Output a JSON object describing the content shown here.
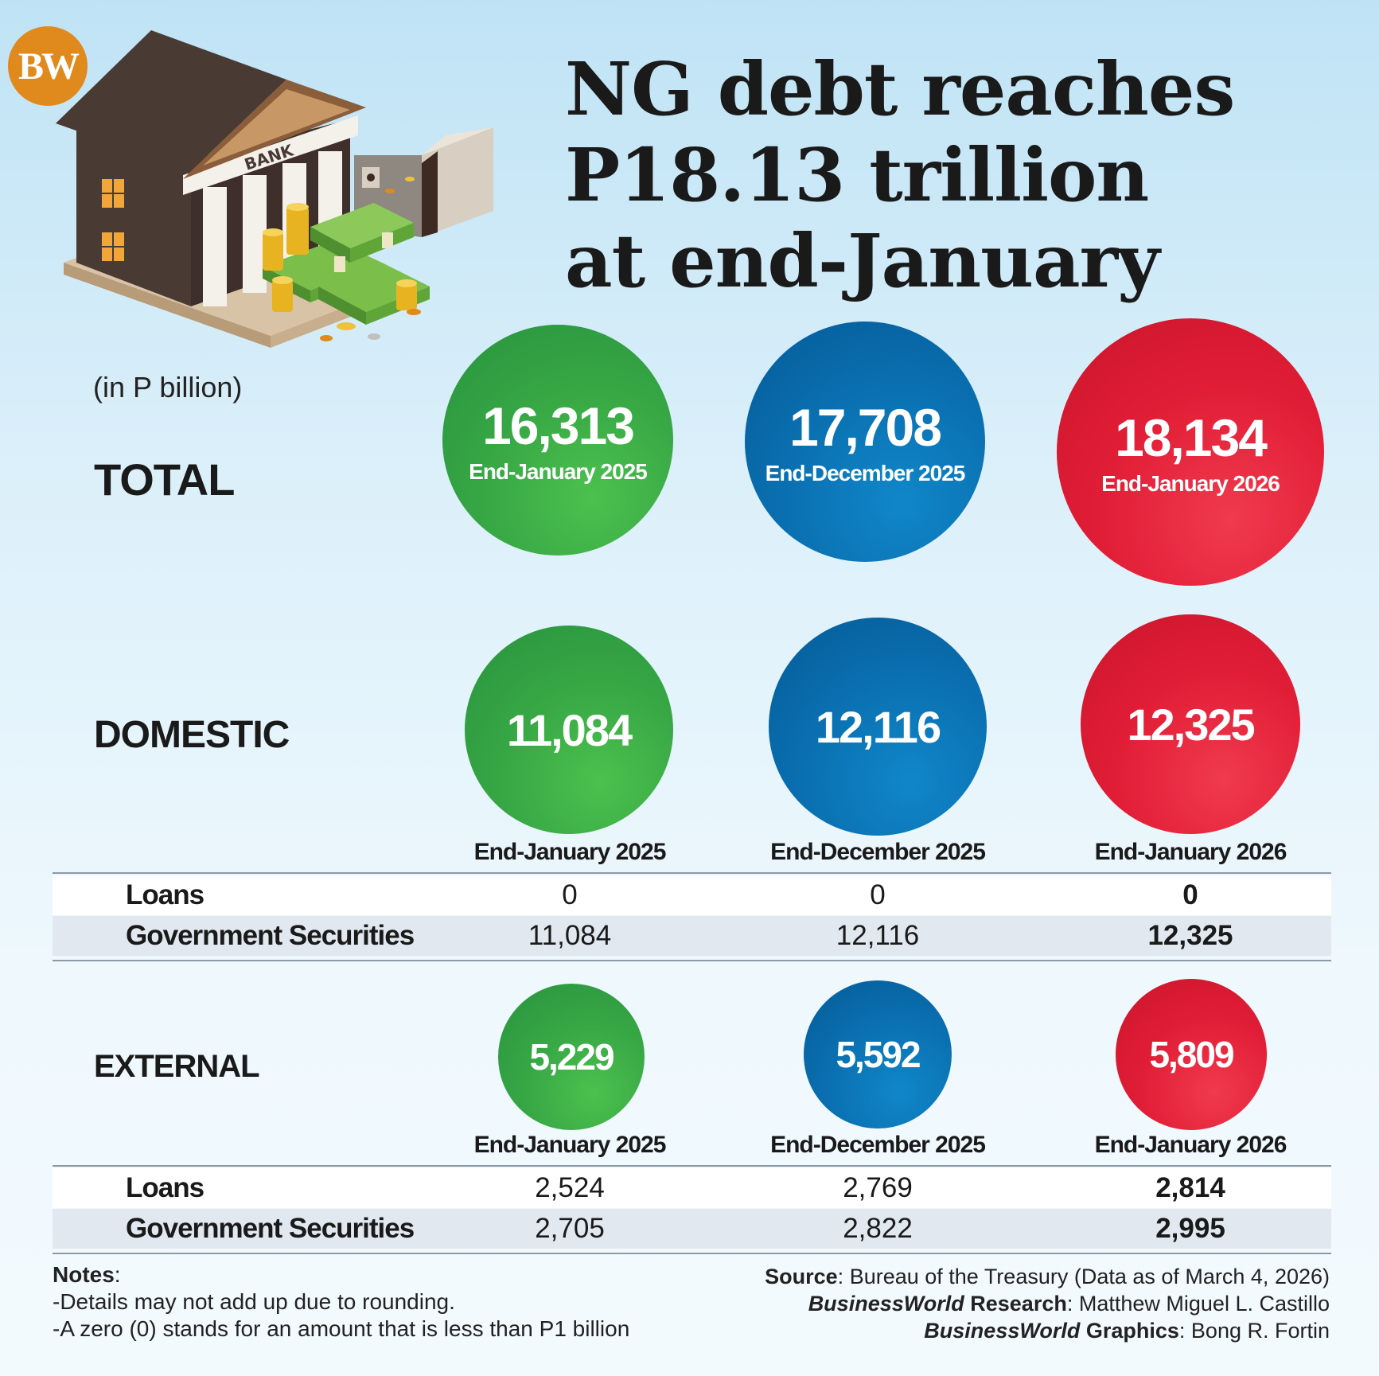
{
  "logo": "BW",
  "title_lines": [
    "NG debt reaches",
    "P18.13 trillion",
    "at end-January"
  ],
  "unit": "(in P billion)",
  "illustration_label": "BANK",
  "colors": {
    "green": "#38a845",
    "blue": "#0a6fb0",
    "red": "#e11d36"
  },
  "periods": [
    "End-January 2025",
    "End-December 2025",
    "End-January 2026"
  ],
  "total": {
    "label": "TOTAL",
    "values": [
      "16,313",
      "17,708",
      "18,134"
    ]
  },
  "domestic": {
    "label": "DOMESTIC",
    "values": [
      "11,084",
      "12,116",
      "12,325"
    ],
    "rows": [
      {
        "label": "Loans",
        "values": [
          "0",
          "0",
          "0"
        ]
      },
      {
        "label": "Government Securities",
        "values": [
          "11,084",
          "12,116",
          "12,325"
        ]
      }
    ]
  },
  "external": {
    "label": "EXTERNAL",
    "values": [
      "5,229",
      "5,592",
      "5,809"
    ],
    "rows": [
      {
        "label": "Loans",
        "values": [
          "2,524",
          "2,769",
          "2,814"
        ]
      },
      {
        "label": "Government Securities",
        "values": [
          "2,705",
          "2,822",
          "2,995"
        ]
      }
    ]
  },
  "notes": {
    "heading": "Notes",
    "items": [
      "-Details may not add up due to rounding.",
      "-A zero (0) stands for an amount that is less than P1 billion"
    ]
  },
  "credits": {
    "source_label": "Source",
    "source": "Bureau of the Treasury (Data as of March 4, 2026)",
    "research_brand": "BusinessWorld",
    "research_label": "Research",
    "research": "Matthew Miguel L. Castillo",
    "graphics_brand": "BusinessWorld",
    "graphics_label": "Graphics",
    "graphics": "Bong R. Fortin"
  },
  "chart_data": {
    "type": "table",
    "title": "NG debt reaches P18.13 trillion at end-January",
    "unit": "(in P billion)",
    "columns": [
      "End-January 2025",
      "End-December 2025",
      "End-January 2026"
    ],
    "series": [
      {
        "name": "TOTAL",
        "values": [
          16313,
          17708,
          18134
        ]
      },
      {
        "name": "DOMESTIC",
        "values": [
          11084,
          12116,
          12325
        ]
      },
      {
        "name": "Loans",
        "values": [
          0,
          0,
          0
        ]
      },
      {
        "name": "Government Securities",
        "values": [
          11084,
          12116,
          12325
        ]
      },
      {
        "name": "EXTERNAL",
        "values": [
          5229,
          5592,
          5809
        ]
      },
      {
        "name": "Loans",
        "values": [
          2524,
          2769,
          2814
        ]
      },
      {
        "name": "Government Securities",
        "values": [
          2705,
          2822,
          2995
        ]
      }
    ]
  }
}
